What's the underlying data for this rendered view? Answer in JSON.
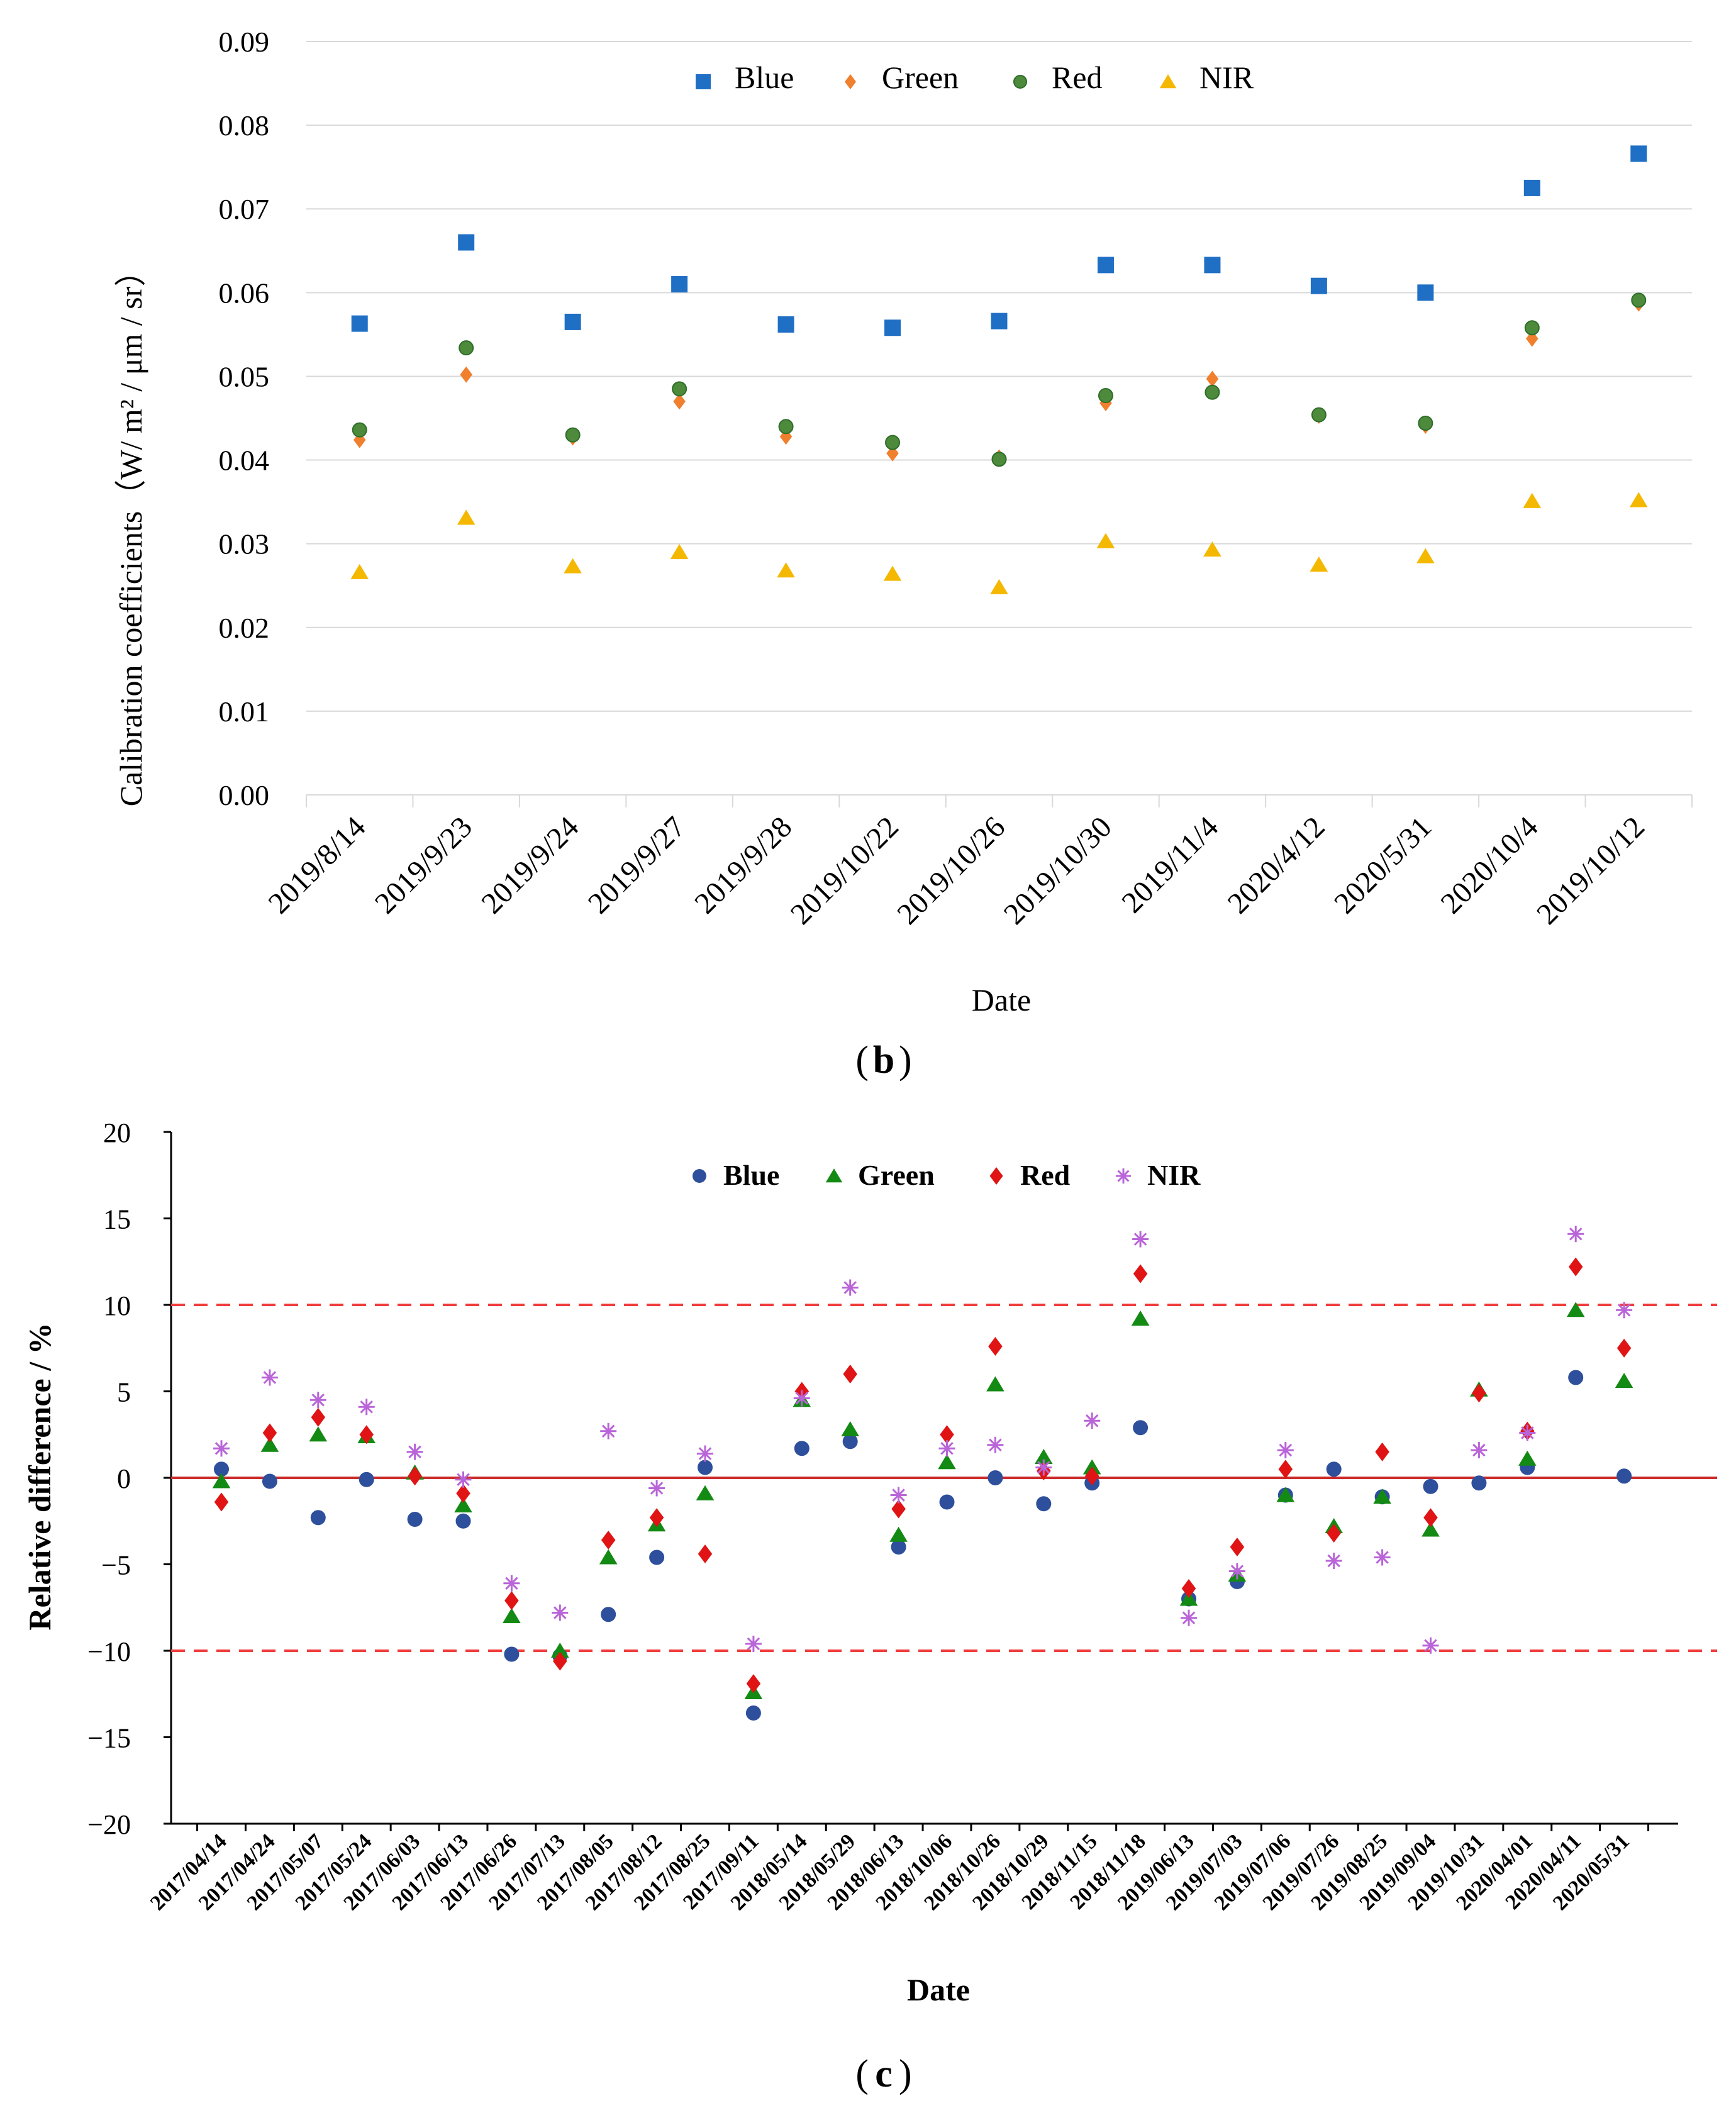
{
  "colors": {
    "blue_b": "#1f6fc5",
    "green_b": "#f07f2e",
    "red_b": "#4d8a3c",
    "red_b_edge": "#2e6d28",
    "nir_b": "#f5b800",
    "grid": "#d9d9d9",
    "blue_c": "#2e4f9c",
    "green_c": "#138a13",
    "red_c": "#e01414",
    "nir_c": "#b964d8",
    "refline": "#cc2b2b",
    "dashline": "#f03c3c"
  },
  "chart_data": [
    {
      "type": "scatter",
      "panel_label": "b",
      "title": "",
      "xlabel": "Date",
      "ylabel": "Calibration  coefficients（W/  m² / μm / sr）",
      "ylim": [
        0,
        0.09
      ],
      "yticks": [
        "0.00",
        "0.01",
        "0.02",
        "0.03",
        "0.04",
        "0.05",
        "0.06",
        "0.07",
        "0.08",
        "0.09"
      ],
      "grid": true,
      "legend_position": "top-center",
      "categories": [
        "2019/8/14",
        "2019/9/23",
        "2019/9/24",
        "2019/9/27",
        "2019/9/28",
        "2019/10/22",
        "2019/10/26",
        "2019/10/30",
        "2019/11/4",
        "2020/4/12",
        "2020/5/31",
        "2020/10/4",
        "2019/10/12"
      ],
      "series": [
        {
          "name": "Blue",
          "marker": "square",
          "values": [
            0.0563,
            0.066,
            0.0565,
            0.061,
            0.0562,
            0.0558,
            0.0566,
            0.0633,
            0.0633,
            0.0608,
            0.06,
            0.0725,
            0.0766
          ]
        },
        {
          "name": "Green",
          "marker": "diamond",
          "values": [
            0.0424,
            0.0502,
            0.0427,
            0.047,
            0.0428,
            0.0408,
            0.0403,
            0.0468,
            0.0497,
            0.0453,
            0.0441,
            0.0545,
            0.0587
          ]
        },
        {
          "name": "Red",
          "marker": "circle",
          "values": [
            0.0436,
            0.0534,
            0.043,
            0.0485,
            0.044,
            0.0421,
            0.0401,
            0.0477,
            0.0481,
            0.0454,
            0.0444,
            0.0558,
            0.0591
          ]
        },
        {
          "name": "NIR",
          "marker": "triangle",
          "values": [
            0.0266,
            0.0331,
            0.0273,
            0.029,
            0.0268,
            0.0264,
            0.0248,
            0.0303,
            0.0293,
            0.0275,
            0.0285,
            0.0351,
            0.0352
          ]
        }
      ]
    },
    {
      "type": "scatter",
      "panel_label": "c",
      "title": "",
      "xlabel": "Date",
      "ylabel": "Relative difference / %",
      "ylim": [
        -20,
        20
      ],
      "yticks": [
        "20",
        "15",
        "10",
        "5",
        "0",
        "−5",
        "−10",
        "−15",
        "−20"
      ],
      "ytick_values": [
        20,
        15,
        10,
        5,
        0,
        -5,
        -10,
        -15,
        -20
      ],
      "grid": false,
      "reference_lines": [
        {
          "y": 0,
          "style": "solid"
        },
        {
          "y": 10,
          "style": "dashed"
        },
        {
          "y": -10,
          "style": "dashed"
        }
      ],
      "legend_position": "top-center",
      "categories": [
        "2017/04/14",
        "2017/04/24",
        "2017/05/07",
        "2017/05/24",
        "2017/06/03",
        "2017/06/13",
        "2017/06/26",
        "2017/07/13",
        "2017/08/05",
        "2017/08/12",
        "2017/08/25",
        "2017/09/11",
        "2018/05/14",
        "2018/05/29",
        "2018/06/13",
        "2018/10/06",
        "2018/10/26",
        "2018/10/29",
        "2018/11/15",
        "2018/11/18",
        "2019/06/13",
        "2019/07/03",
        "2019/07/06",
        "2019/07/26",
        "2019/08/25",
        "2019/09/04",
        "2019/10/31",
        "2020/04/01",
        "2020/04/11",
        "2020/05/31"
      ],
      "series": [
        {
          "name": "Blue",
          "marker": "circle",
          "values": [
            0.5,
            -0.2,
            -2.3,
            -0.1,
            -2.4,
            -2.5,
            -10.2,
            -10.3,
            -7.9,
            -4.6,
            0.6,
            -13.6,
            1.7,
            2.1,
            -4.0,
            -1.4,
            0.0,
            -1.5,
            -0.3,
            2.9,
            -7.0,
            -6.0,
            -1.0,
            0.5,
            -1.1,
            -0.5,
            -0.3,
            0.6,
            5.8,
            0.1
          ]
        },
        {
          "name": "Green",
          "marker": "triangle",
          "values": [
            -0.2,
            1.9,
            2.5,
            2.4,
            0.3,
            -1.6,
            -8.0,
            -10.0,
            -4.6,
            -2.7,
            -0.9,
            -12.4,
            4.5,
            2.8,
            -3.3,
            0.9,
            5.4,
            1.2,
            0.6,
            9.2,
            -7.0,
            -5.6,
            -1.0,
            -2.8,
            -1.1,
            -3.0,
            5.1,
            1.1,
            9.7,
            5.6
          ]
        },
        {
          "name": "Red",
          "marker": "diamond",
          "values": [
            -1.4,
            2.6,
            3.5,
            2.5,
            0.1,
            -0.9,
            -7.1,
            -10.6,
            -3.6,
            -2.3,
            -4.4,
            -11.9,
            5.0,
            6.0,
            -1.8,
            2.5,
            7.6,
            0.4,
            0.1,
            11.8,
            -6.4,
            -4.0,
            0.5,
            -3.2,
            1.5,
            -2.3,
            4.9,
            2.7,
            12.2,
            7.5
          ]
        },
        {
          "name": "NIR",
          "marker": "asterisk",
          "values": [
            1.7,
            5.8,
            4.5,
            4.1,
            1.5,
            -0.1,
            -6.1,
            -7.8,
            2.7,
            -0.6,
            1.4,
            -9.6,
            4.6,
            11.0,
            -1.0,
            1.7,
            1.9,
            0.6,
            3.3,
            13.8,
            -8.1,
            -5.4,
            1.6,
            -4.8,
            -4.6,
            -9.7,
            1.6,
            2.6,
            14.1,
            9.7
          ]
        }
      ]
    }
  ]
}
